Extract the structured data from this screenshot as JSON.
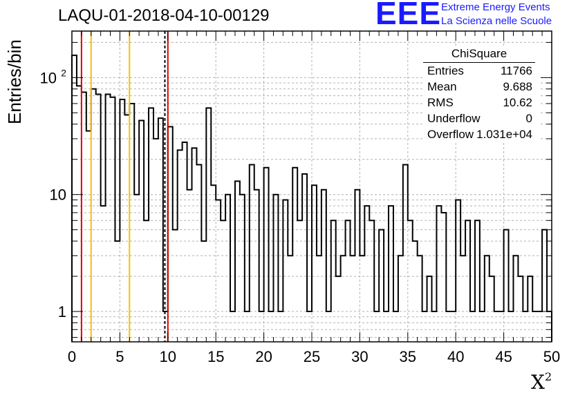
{
  "title": "LAQU-01-2018-04-10-00129",
  "logo": {
    "mark": "EEE",
    "line1": "Extreme Energy Events",
    "line2": "La Scienza nelle Scuole"
  },
  "stats_box": {
    "title": "ChiSquare",
    "rows": [
      {
        "key": "Entries",
        "value": "11766"
      },
      {
        "key": "Mean",
        "value": "9.688"
      },
      {
        "key": "RMS",
        "value": "10.62"
      },
      {
        "key": "Underflow",
        "value": "0"
      },
      {
        "key": "Overflow",
        "value": "1.031e+04"
      }
    ]
  },
  "colors": {
    "red_line": "#e00000",
    "yellow_line": "#f5c000",
    "histogram": "#000000",
    "grid": "#b0b0b0"
  },
  "chart_data": {
    "type": "histogram",
    "xlabel": "X",
    "xlabel_superscript": "2",
    "ylabel": "Entries/bin",
    "xlim": [
      0,
      50
    ],
    "ylim_log": [
      0.55,
      250
    ],
    "y_scale": "log",
    "grid": true,
    "bin_width": 0.5,
    "x_ticks": [
      "0",
      "5",
      "10",
      "15",
      "20",
      "25",
      "30",
      "35",
      "40",
      "45",
      "50"
    ],
    "y_ticks": [
      {
        "value": 1,
        "label": "1"
      },
      {
        "value": 10,
        "label": "10"
      },
      {
        "value": 100,
        "label": "10",
        "sup": "2"
      }
    ],
    "values": [
      155,
      85,
      75,
      35,
      80,
      72,
      8,
      72,
      68,
      4,
      65,
      48,
      60,
      10,
      43,
      6,
      55,
      30,
      45,
      1,
      38,
      5,
      24,
      28,
      11,
      25,
      18,
      4,
      55,
      12,
      9,
      6,
      10,
      1,
      13,
      10,
      1,
      18,
      11,
      1,
      17,
      1,
      10,
      1,
      9,
      3,
      17,
      6,
      15,
      1,
      12,
      3,
      11,
      1,
      6,
      2,
      3,
      6,
      3,
      11,
      3,
      8,
      6,
      1,
      5,
      1,
      8,
      1,
      3,
      18,
      6,
      4,
      3,
      1,
      2,
      1,
      8,
      7,
      1,
      1,
      9,
      3,
      6,
      1,
      6,
      1,
      3,
      2,
      1,
      1,
      5,
      1,
      3,
      2,
      1,
      2,
      1,
      1,
      5,
      1
    ],
    "vlines": [
      {
        "x": 1.0,
        "color": "red",
        "style": "solid"
      },
      {
        "x": 2.0,
        "color": "yellow",
        "style": "solid"
      },
      {
        "x": 6.0,
        "color": "yellow",
        "style": "solid"
      },
      {
        "x": 9.688,
        "color": "black",
        "style": "dashed"
      },
      {
        "x": 10.0,
        "color": "red",
        "style": "solid"
      }
    ]
  }
}
